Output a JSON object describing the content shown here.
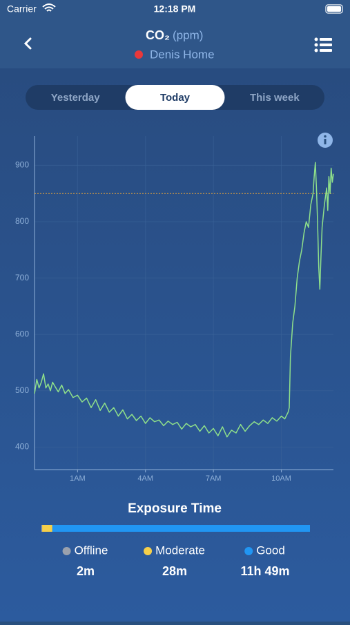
{
  "status_bar": {
    "carrier": "Carrier",
    "time": "12:18 PM"
  },
  "header": {
    "title": "CO₂",
    "unit": "(ppm)",
    "location": "Denis Home"
  },
  "tabs": {
    "items": [
      "Yesterday",
      "Today",
      "This week"
    ],
    "selected": 1
  },
  "chart_data": [
    {
      "type": "line",
      "color": "#8fe08a",
      "x": [
        -0.9,
        -0.8,
        -0.7,
        -0.6,
        -0.5,
        -0.4,
        -0.3,
        -0.2,
        -0.1,
        0,
        0.15,
        0.3,
        0.45,
        0.6,
        0.8,
        1,
        1.2,
        1.4,
        1.6,
        1.8,
        2,
        2.2,
        2.4,
        2.6,
        2.8,
        3,
        3.2,
        3.4,
        3.6,
        3.8,
        4,
        4.2,
        4.4,
        4.6,
        4.8,
        5,
        5.2,
        5.4,
        5.6,
        5.8,
        6,
        6.2,
        6.4,
        6.6,
        6.8,
        7,
        7.2,
        7.4,
        7.6,
        7.8,
        8,
        8.2,
        8.4,
        8.6,
        8.8,
        9,
        9.2,
        9.4,
        9.6,
        9.8,
        10,
        10.15,
        10.3,
        10.35,
        10.4,
        10.5,
        10.6,
        10.7,
        10.8,
        10.9,
        11,
        11.1,
        11.2,
        11.3,
        11.4,
        11.45,
        11.5,
        11.55,
        11.6,
        11.65,
        11.7,
        11.75,
        11.8,
        11.9,
        12,
        12.05,
        12.1,
        12.15,
        12.2,
        12.25,
        12.3
      ],
      "values": [
        495,
        520,
        505,
        515,
        530,
        505,
        512,
        500,
        515,
        508,
        498,
        510,
        495,
        502,
        488,
        492,
        480,
        487,
        470,
        484,
        465,
        478,
        462,
        470,
        455,
        466,
        450,
        458,
        447,
        455,
        442,
        452,
        445,
        448,
        438,
        446,
        440,
        444,
        432,
        442,
        436,
        440,
        428,
        438,
        425,
        433,
        420,
        436,
        418,
        430,
        425,
        440,
        428,
        438,
        445,
        440,
        448,
        442,
        452,
        446,
        455,
        450,
        462,
        470,
        560,
        620,
        650,
        700,
        730,
        750,
        780,
        800,
        790,
        830,
        850,
        880,
        905,
        860,
        800,
        720,
        680,
        740,
        790,
        830,
        860,
        820,
        880,
        850,
        895,
        870,
        885
      ],
      "xlim": [
        -0.9,
        12.3
      ],
      "ylim": [
        360,
        952
      ],
      "xticks": [
        {
          "value": 1,
          "label": "1AM"
        },
        {
          "value": 4,
          "label": "4AM"
        },
        {
          "value": 7,
          "label": "7AM"
        },
        {
          "value": 10,
          "label": "10AM"
        }
      ],
      "yticks": [
        400,
        500,
        600,
        700,
        800,
        900
      ],
      "threshold": 850,
      "threshold_color": "#e6a33a",
      "grid": true
    },
    {
      "type": "stacked-bar",
      "title": "Exposure Time",
      "categories": [
        "Offline",
        "Moderate",
        "Good"
      ],
      "colors": [
        "#9aa1ad",
        "#f5cf4a",
        "#2196f3"
      ],
      "values": [
        2,
        28,
        709
      ],
      "value_labels": [
        "2m",
        "28m",
        "11h 49m"
      ]
    }
  ]
}
